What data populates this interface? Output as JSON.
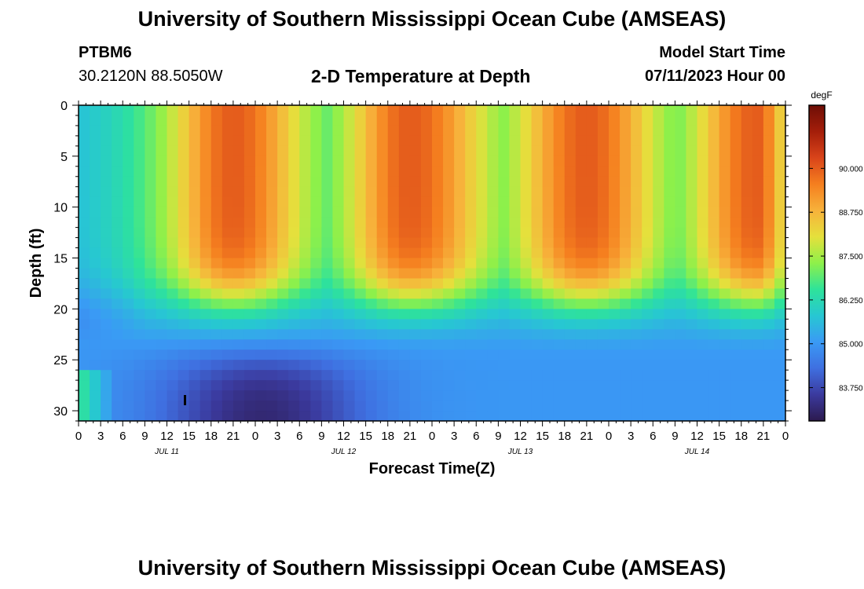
{
  "header": {
    "title": "University of Southern Mississippi Ocean Cube (AMSEAS)",
    "station_id": "PTBM6",
    "coordinates": "30.2120N  88.5050W",
    "subtitle": "2-D Temperature at Depth",
    "model_start_label": "Model Start Time",
    "model_start_value": "07/11/2023 Hour 00"
  },
  "footer": {
    "title": "University of Southern Mississippi Ocean Cube (AMSEAS)"
  },
  "chart_data": {
    "type": "heatmap",
    "title": "2-D Temperature at Depth",
    "xlabel": "Forecast Time(Z)",
    "ylabel": "Depth (ft)",
    "xlim": [
      0,
      96
    ],
    "ylim": [
      31,
      0
    ],
    "x_tick_labels": [
      "0",
      "3",
      "6",
      "9",
      "12",
      "15",
      "18",
      "21",
      "0",
      "3",
      "6",
      "9",
      "12",
      "15",
      "18",
      "21",
      "0",
      "3",
      "6",
      "9",
      "12",
      "15",
      "18",
      "21",
      "0",
      "3",
      "6",
      "9",
      "12",
      "15",
      "18",
      "21",
      "0"
    ],
    "y_tick_values": [
      0,
      5,
      10,
      15,
      20,
      25,
      30
    ],
    "y_tick_labels": [
      "0",
      "5",
      "10",
      "15",
      "20",
      "25",
      "30"
    ],
    "day_labels": [
      {
        "label": "JUL 11",
        "hour": 12
      },
      {
        "label": "JUL 12",
        "hour": 36
      },
      {
        "label": "JUL 13",
        "hour": 60
      },
      {
        "label": "JUL 14",
        "hour": 84
      }
    ],
    "colorbar": {
      "unit": "degF",
      "range": [
        82.8,
        91.8
      ],
      "tick_values": [
        90.0,
        88.75,
        87.5,
        86.25,
        85.0,
        83.75
      ],
      "tick_labels": [
        "90.000",
        "88.750",
        "87.500",
        "86.250",
        "85.000",
        "83.750"
      ],
      "colors": [
        "#2c1a4e",
        "#3b3a9e",
        "#3f6fe0",
        "#3a9af5",
        "#27c7d2",
        "#2ee39a",
        "#8ef04a",
        "#e5e03c",
        "#f7b23b",
        "#f57f1f",
        "#d9441a",
        "#a41e0a",
        "#6e0e06"
      ]
    },
    "grid": false,
    "field_description": {
      "warm_bands": [
        {
          "start_hour": 13,
          "peak_hour": 21,
          "end_hour": 30
        },
        {
          "start_hour": 37,
          "peak_hour": 45,
          "end_hour": 55
        },
        {
          "start_hour": 60,
          "peak_hour": 69,
          "end_hour": 78
        },
        {
          "start_hour": 84,
          "peak_hour": 92,
          "end_hour": 96
        }
      ],
      "thermocline_depth_ft": 23,
      "coldest_region": {
        "hour_range": [
          8,
          42
        ],
        "depth_range": [
          25,
          31
        ],
        "min_temp": 83.0
      }
    }
  }
}
